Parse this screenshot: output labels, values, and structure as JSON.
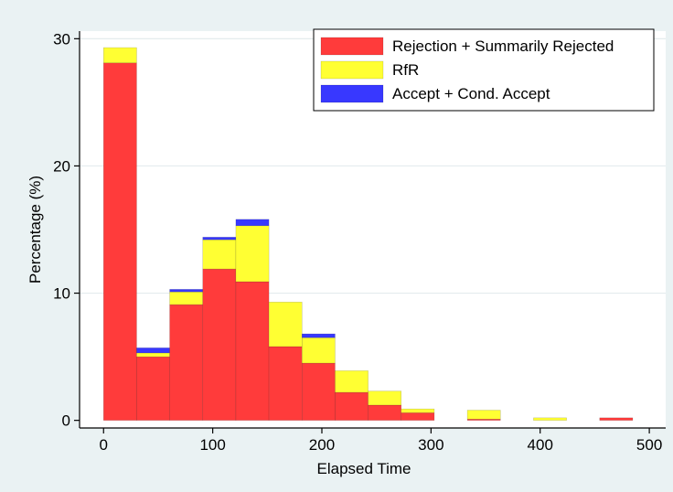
{
  "chart_data": {
    "type": "bar",
    "stacked": true,
    "xlabel": "Elapsed Time",
    "ylabel": "Percentage (%)",
    "xlim": [
      -22,
      515
    ],
    "ylim": [
      -0.6,
      30.6
    ],
    "xticks": [
      0,
      100,
      200,
      300,
      400,
      500
    ],
    "yticks": [
      0,
      10,
      20,
      30
    ],
    "grid": true,
    "legend_position": "top-right",
    "bin_edges": [
      0,
      30.3,
      60.6,
      90.9,
      121.2,
      151.5,
      181.8,
      212.1,
      242.4,
      272.7,
      303,
      333.3,
      363.6,
      393.9,
      424.2,
      454.5,
      484.8
    ],
    "series": [
      {
        "name": "Rejection + Summarily Rejected",
        "color": "#ff3b3b",
        "values": [
          28.1,
          5.0,
          9.1,
          11.9,
          10.9,
          5.8,
          4.5,
          2.2,
          1.2,
          0.6,
          0.0,
          0.1,
          0.0,
          0.0,
          0.0,
          0.2
        ]
      },
      {
        "name": "RfR",
        "color": "#ffff33",
        "values": [
          1.2,
          0.3,
          1.0,
          2.3,
          4.4,
          3.5,
          2.0,
          1.7,
          1.1,
          0.3,
          0.0,
          0.7,
          0.0,
          0.2,
          0.0,
          0.0
        ]
      },
      {
        "name": "Accept + Cond. Accept",
        "color": "#3838ff",
        "values": [
          0.0,
          0.4,
          0.2,
          0.2,
          0.5,
          0.0,
          0.3,
          0.0,
          0.0,
          0.0,
          0.0,
          0.0,
          0.0,
          0.0,
          0.0,
          0.0
        ]
      }
    ]
  }
}
